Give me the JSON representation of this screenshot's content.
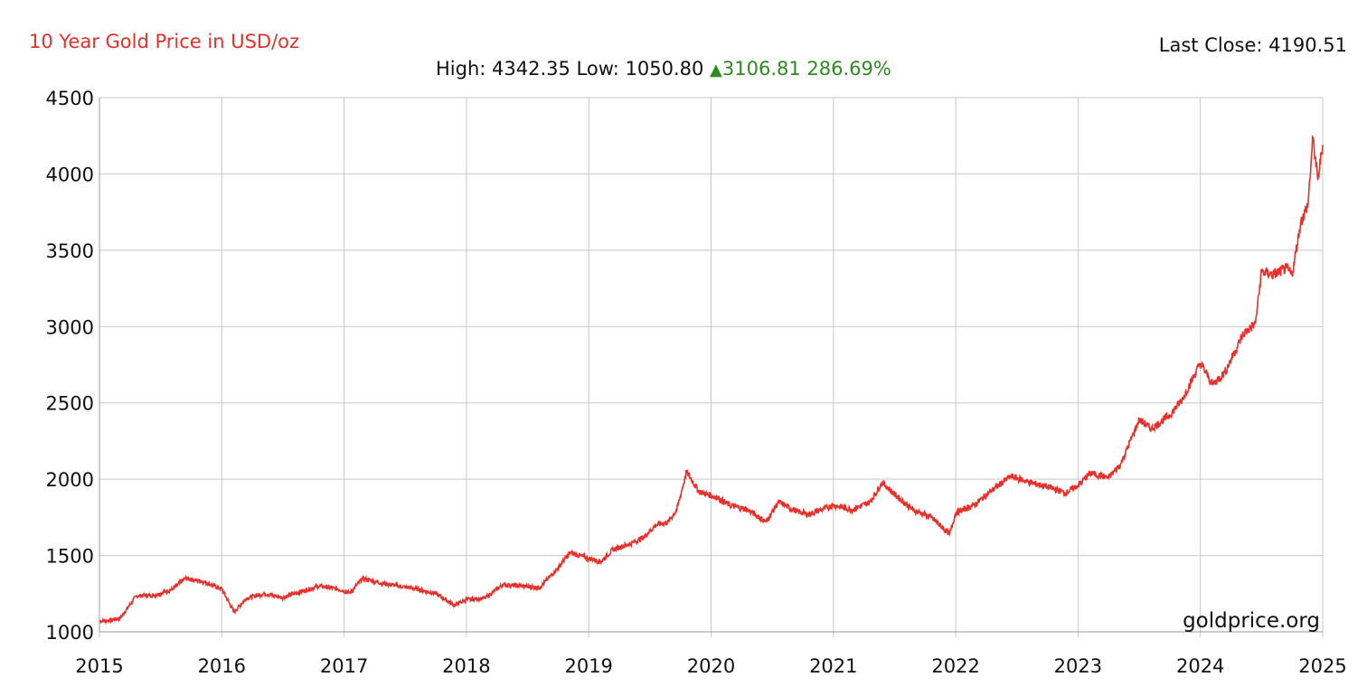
{
  "header": {
    "title": "10 Year Gold Price in USD/oz",
    "last_close": "Last Close: 4190.51",
    "high_text": "High: 4342.35",
    "low_text": "Low: 1050.80",
    "change": "3106.81",
    "change_pct": "286.69%"
  },
  "colors": {
    "line": "#e8302a",
    "up": "#2e8b1e",
    "grid": "#c8c8c8"
  },
  "chart_data": {
    "type": "line",
    "title": "10 Year Gold Price in USD/oz",
    "xlabel": "",
    "ylabel": "",
    "xlim": [
      2015,
      2025
    ],
    "ylim": [
      1000,
      4500
    ],
    "grid": true,
    "xticks": [
      "2015",
      "2016",
      "2017",
      "2018",
      "2019",
      "2020",
      "2021",
      "2022",
      "2023",
      "2024",
      "2025"
    ],
    "yticks": [
      "1000",
      "1500",
      "2000",
      "2500",
      "3000",
      "3500",
      "4000",
      "4500"
    ],
    "series": [
      {
        "values_x": [
          2015.0,
          2015.08,
          2015.17,
          2015.3,
          2015.45,
          2015.6,
          2015.7,
          2015.85,
          2016.0,
          2016.1,
          2016.2,
          2016.35,
          2016.5,
          2016.65,
          2016.8,
          2016.95,
          2017.05,
          2017.15,
          2017.3,
          2017.45,
          2017.6,
          2017.75,
          2017.9,
          2018.0,
          2018.15,
          2018.3,
          2018.45,
          2018.6,
          2018.75,
          2018.85,
          2019.0,
          2019.1,
          2019.2,
          2019.35,
          2019.45,
          2019.55,
          2019.65,
          2019.72,
          2019.8,
          2019.9,
          2020.05,
          2020.15,
          2020.3,
          2020.45,
          2020.55,
          2020.7,
          2020.8,
          2020.9,
          2021.0,
          2021.15,
          2021.3,
          2021.4,
          2021.5,
          2021.65,
          2021.8,
          2021.95,
          2022.0,
          2022.15,
          2022.3,
          2022.45,
          2022.6,
          2022.75,
          2022.9,
          2023.0,
          2023.1,
          2023.25,
          2023.35,
          2023.5,
          2023.6,
          2023.75,
          2023.85,
          2024.0,
          2024.1,
          2024.2,
          2024.35,
          2024.45,
          2024.5,
          2024.6,
          2024.7,
          2024.75,
          2024.82,
          2024.88,
          2024.92,
          2024.96,
          2025.0
        ],
        "values": [
          1070,
          1075,
          1090,
          1235,
          1240,
          1280,
          1350,
          1330,
          1280,
          1130,
          1220,
          1250,
          1225,
          1265,
          1300,
          1280,
          1255,
          1350,
          1320,
          1300,
          1280,
          1250,
          1175,
          1210,
          1220,
          1310,
          1300,
          1290,
          1420,
          1520,
          1480,
          1460,
          1540,
          1580,
          1620,
          1700,
          1720,
          1800,
          2050,
          1920,
          1880,
          1830,
          1800,
          1720,
          1850,
          1790,
          1770,
          1800,
          1830,
          1800,
          1850,
          1980,
          1900,
          1800,
          1750,
          1640,
          1780,
          1830,
          1930,
          2020,
          1980,
          1950,
          1910,
          1960,
          2040,
          2010,
          2100,
          2390,
          2330,
          2420,
          2520,
          2760,
          2620,
          2700,
          2950,
          3020,
          3360,
          3340,
          3380,
          3340,
          3680,
          3800,
          4240,
          3960,
          4190
        ]
      }
    ]
  },
  "watermark": "goldprice.org"
}
